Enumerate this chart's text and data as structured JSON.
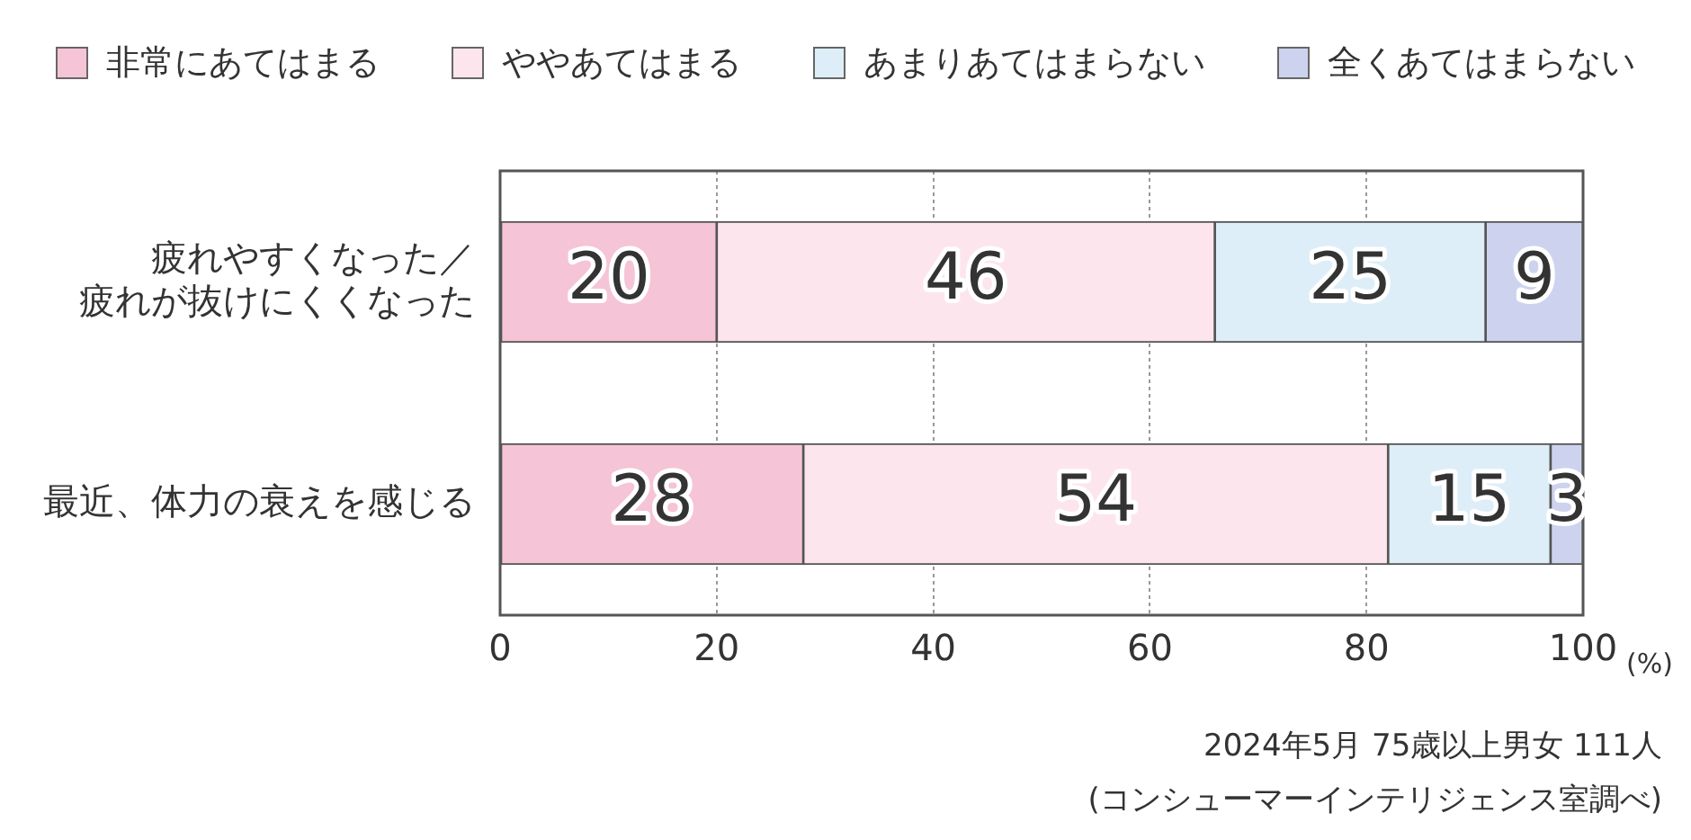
{
  "chart_data": {
    "type": "bar",
    "orientation": "horizontal",
    "stacked": true,
    "categories": [
      "疲れやすくなった／疲れが抜けにくくなった",
      "最近、体力の衰えを感じる"
    ],
    "series": [
      {
        "name": "非常にあてはまる",
        "color": "#f6c4d7",
        "values": [
          20,
          28
        ]
      },
      {
        "name": "ややあてはまる",
        "color": "#fde5ee",
        "values": [
          46,
          54
        ]
      },
      {
        "name": "あまりあてはまらない",
        "color": "#ddeef8",
        "values": [
          25,
          15
        ]
      },
      {
        "name": "全くあてはまらない",
        "color": "#cdd3ef",
        "values": [
          9,
          3
        ]
      }
    ],
    "xlim": [
      0,
      100
    ],
    "xticks": [
      0,
      20,
      40,
      60,
      80,
      100
    ],
    "xlabel": "(%)",
    "grid": "x",
    "legend": "top",
    "data_labels": true,
    "annotations": [
      "2024年5月 75歳以上男女 111人",
      "(コンシューマーインテリジェンス室調べ)"
    ]
  }
}
